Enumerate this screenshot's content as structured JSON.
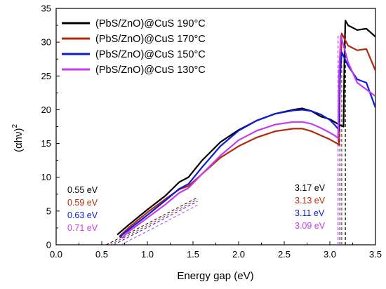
{
  "chart_data": {
    "type": "line",
    "xlabel": "Energy gap (eV)",
    "ylabel": "(αhν)",
    "ylabel_superscript": "2",
    "xlim": [
      0.0,
      3.5
    ],
    "ylim": [
      0,
      35
    ],
    "xticks": [
      "0.0",
      "0.5",
      "1.0",
      "1.5",
      "2.0",
      "2.5",
      "3.0",
      "3.5"
    ],
    "yticks": [
      "0",
      "5",
      "10",
      "15",
      "20",
      "25",
      "30",
      "35"
    ],
    "x_tick_values": [
      0,
      0.5,
      1.0,
      1.5,
      2.0,
      2.5,
      3.0,
      3.5
    ],
    "y_tick_values": [
      0,
      5,
      10,
      15,
      20,
      25,
      30,
      35
    ],
    "grid": false,
    "legend_position": "top-left",
    "series": [
      {
        "name": "(PbS/ZnO)@CuS 190°C",
        "color": "#000000",
        "x": [
          0.67,
          0.8,
          1.0,
          1.2,
          1.35,
          1.45,
          1.6,
          1.8,
          2.0,
          2.2,
          2.4,
          2.6,
          2.7,
          2.8,
          2.9,
          3.0,
          3.1,
          3.15,
          3.16,
          3.17,
          3.2,
          3.3,
          3.4,
          3.5
        ],
        "y": [
          1.5,
          3.0,
          5.2,
          7.3,
          9.3,
          10.0,
          12.5,
          15.2,
          17.0,
          18.4,
          19.4,
          20.0,
          20.2,
          19.8,
          19.0,
          18.6,
          17.8,
          17.5,
          28.0,
          33.2,
          32.5,
          31.8,
          32.0,
          30.8
        ],
        "band_gap": 3.17,
        "low_gap": 0.55
      },
      {
        "name": "(PbS/ZnO)@CuS 170°C",
        "color": "#b22a0a",
        "x": [
          0.69,
          0.8,
          1.0,
          1.2,
          1.35,
          1.45,
          1.6,
          1.8,
          2.0,
          2.2,
          2.4,
          2.6,
          2.7,
          2.8,
          2.9,
          3.0,
          3.08,
          3.1,
          3.11,
          3.13,
          3.2,
          3.3,
          3.4,
          3.5
        ],
        "y": [
          1.2,
          2.6,
          4.8,
          6.8,
          8.2,
          8.7,
          10.5,
          12.9,
          14.6,
          15.9,
          16.8,
          17.2,
          17.2,
          16.8,
          16.2,
          15.6,
          15.0,
          14.8,
          24.0,
          31.3,
          29.5,
          28.8,
          29.0,
          25.8
        ],
        "band_gap": 3.13,
        "low_gap": 0.59
      },
      {
        "name": "(PbS/ZnO)@CuS 150°C",
        "color": "#0b1bd6",
        "x": [
          0.7,
          0.8,
          1.0,
          1.2,
          1.35,
          1.45,
          1.6,
          1.8,
          2.0,
          2.2,
          2.4,
          2.6,
          2.7,
          2.8,
          2.9,
          3.0,
          3.05,
          3.1,
          3.11,
          3.13,
          3.2,
          3.3,
          3.4,
          3.5
        ],
        "y": [
          1.2,
          2.3,
          4.4,
          6.6,
          8.3,
          9.0,
          11.5,
          14.6,
          16.9,
          18.4,
          19.4,
          19.9,
          20.0,
          19.8,
          19.3,
          18.5,
          17.8,
          17.0,
          24.5,
          28.5,
          26.5,
          24.5,
          24.0,
          20.3
        ],
        "band_gap": 3.11,
        "low_gap": 0.63
      },
      {
        "name": "(PbS/ZnO)@CuS 130°C",
        "color": "#c43ced",
        "x": [
          0.72,
          0.8,
          1.0,
          1.2,
          1.35,
          1.45,
          1.6,
          1.8,
          2.0,
          2.2,
          2.4,
          2.6,
          2.7,
          2.8,
          2.9,
          3.0,
          3.05,
          3.09,
          3.1,
          3.12,
          3.2,
          3.3,
          3.4,
          3.5
        ],
        "y": [
          1.0,
          2.0,
          4.0,
          6.0,
          7.7,
          8.4,
          10.5,
          13.2,
          15.5,
          16.9,
          17.8,
          18.2,
          18.2,
          17.9,
          17.3,
          16.6,
          16.2,
          15.8,
          25.0,
          31.0,
          27.0,
          24.0,
          23.0,
          22.0
        ],
        "band_gap": 3.09,
        "low_gap": 0.71
      }
    ],
    "annotations_left": [
      {
        "text": "0.55 eV",
        "color": "#000000"
      },
      {
        "text": "0.59 eV",
        "color": "#b22a0a"
      },
      {
        "text": "0.63 eV",
        "color": "#0b1bd6"
      },
      {
        "text": "0.71 eV",
        "color": "#c43ced"
      }
    ],
    "annotations_right": [
      {
        "text": "3.17 eV",
        "color": "#000000"
      },
      {
        "text": "3.13 eV",
        "color": "#b22a0a"
      },
      {
        "text": "3.11 eV",
        "color": "#0b1bd6"
      },
      {
        "text": "3.09 eV",
        "color": "#c43ced"
      }
    ]
  }
}
